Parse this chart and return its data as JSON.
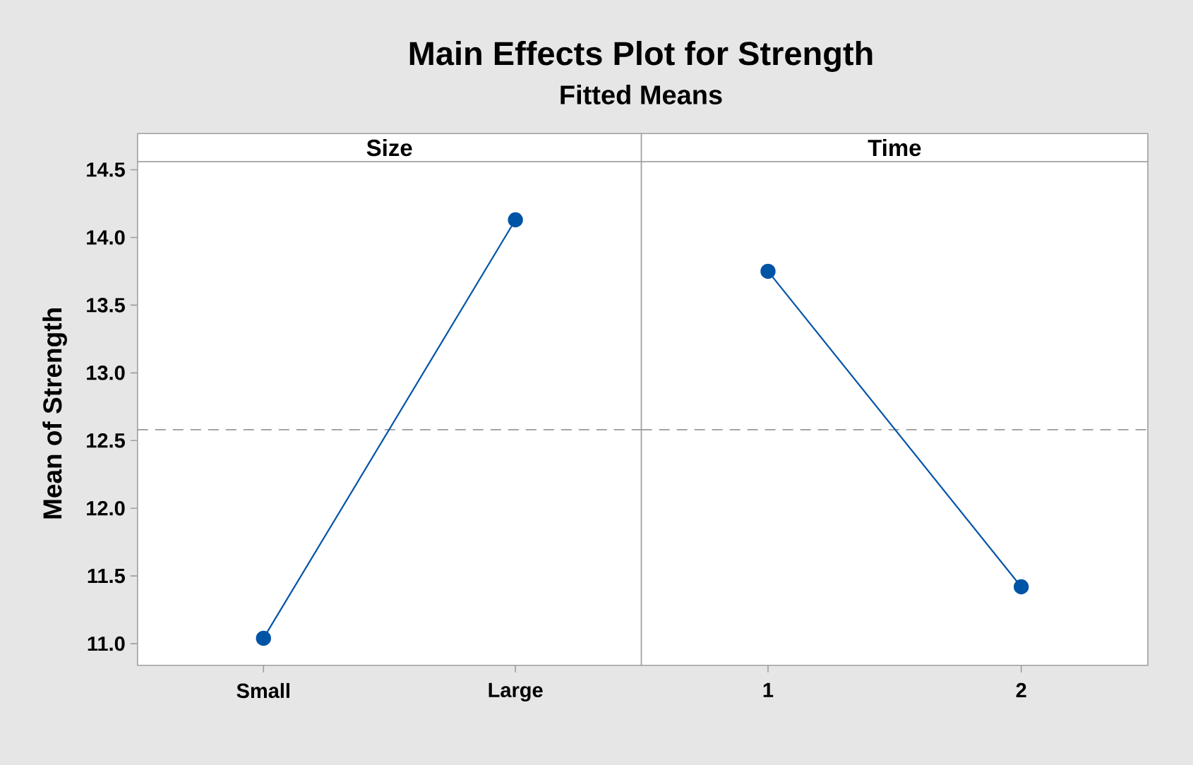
{
  "chart_data": [
    {
      "type": "line",
      "title": "Main Effects Plot for Strength",
      "subtitle": "Fitted Means",
      "xlabel": "Size",
      "ylabel": "Mean of Strength",
      "categories": [
        "Small",
        "Large"
      ],
      "series": [
        {
          "color": "#0054a6",
          "values": [
            11.04,
            14.13
          ]
        }
      ],
      "ylim": [
        10.84,
        14.56
      ],
      "yticks": [
        {
          "value": 11,
          "label": "11.0"
        },
        11.5,
        {
          "value": 12,
          "label": "12.0"
        },
        12.5,
        {
          "value": 13,
          "label": "13.0"
        },
        13.5,
        {
          "value": 14,
          "label": "14.0"
        },
        14.5
      ],
      "marker": "circle",
      "ref_lines": [
        {
          "axis": "y",
          "value": 12.58,
          "color": "#999999",
          "line_style": "dashed"
        }
      ]
    },
    {
      "type": "line",
      "xlabel": "Time",
      "categories": [
        "1",
        "2"
      ],
      "series": [
        {
          "color": "#0054a6",
          "values": [
            13.75,
            11.42
          ]
        }
      ],
      "ylim": [
        10.84,
        14.56
      ],
      "tick_labels": "x",
      "marker": "circle",
      "ref_lines": [
        {
          "axis": "y",
          "value": 12.58,
          "color": "#999999",
          "line_style": "dashed"
        }
      ]
    }
  ]
}
